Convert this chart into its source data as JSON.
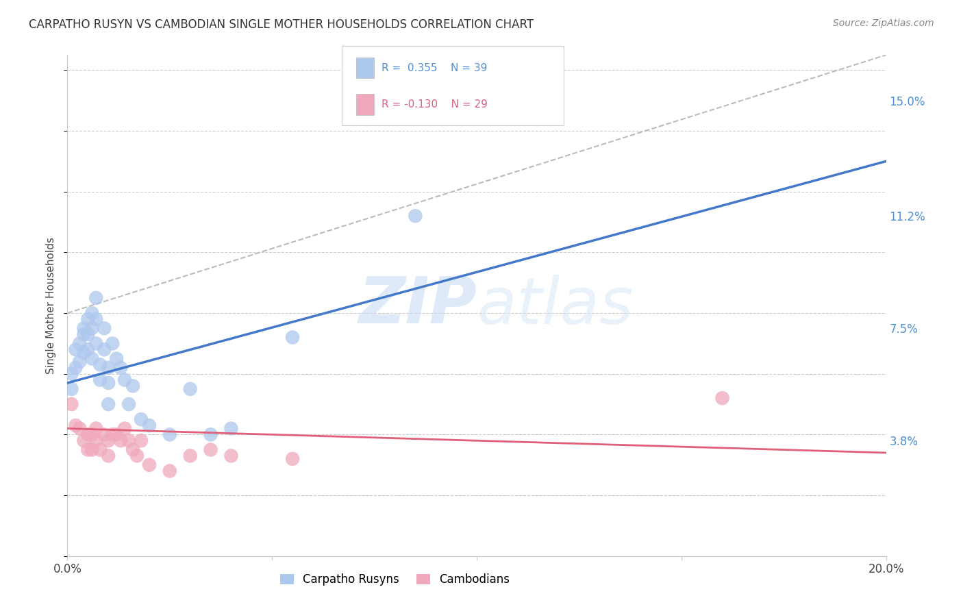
{
  "title": "CARPATHO RUSYN VS CAMBODIAN SINGLE MOTHER HOUSEHOLDS CORRELATION CHART",
  "source": "Source: ZipAtlas.com",
  "ylabel": "Single Mother Households",
  "yticks": [
    "3.8%",
    "7.5%",
    "11.2%",
    "15.0%"
  ],
  "ytick_vals": [
    0.038,
    0.075,
    0.112,
    0.15
  ],
  "xlim": [
    0.0,
    0.2
  ],
  "ylim": [
    0.0,
    0.165
  ],
  "legend_blue_label": "Carpatho Rusyns",
  "legend_pink_label": "Cambodians",
  "blue_color": "#adc8ed",
  "pink_color": "#f0a8bc",
  "blue_line_color": "#4478c8",
  "pink_line_color": "#e0607a",
  "dashed_line_color": "#bbbbbb",
  "watermark_zip": "ZIP",
  "watermark_atlas": "atlas",
  "blue_points_x": [
    0.001,
    0.001,
    0.002,
    0.002,
    0.003,
    0.003,
    0.004,
    0.004,
    0.004,
    0.005,
    0.005,
    0.005,
    0.006,
    0.006,
    0.006,
    0.007,
    0.007,
    0.007,
    0.008,
    0.008,
    0.009,
    0.009,
    0.01,
    0.01,
    0.01,
    0.011,
    0.012,
    0.013,
    0.014,
    0.015,
    0.016,
    0.018,
    0.02,
    0.025,
    0.03,
    0.035,
    0.04,
    0.055,
    0.085
  ],
  "blue_points_y": [
    0.06,
    0.055,
    0.068,
    0.062,
    0.07,
    0.064,
    0.073,
    0.067,
    0.075,
    0.078,
    0.073,
    0.068,
    0.08,
    0.075,
    0.065,
    0.085,
    0.078,
    0.07,
    0.063,
    0.058,
    0.075,
    0.068,
    0.062,
    0.057,
    0.05,
    0.07,
    0.065,
    0.062,
    0.058,
    0.05,
    0.056,
    0.045,
    0.043,
    0.04,
    0.055,
    0.04,
    0.042,
    0.072,
    0.112
  ],
  "pink_points_x": [
    0.001,
    0.002,
    0.003,
    0.004,
    0.005,
    0.005,
    0.006,
    0.006,
    0.007,
    0.007,
    0.008,
    0.009,
    0.01,
    0.01,
    0.011,
    0.012,
    0.013,
    0.014,
    0.015,
    0.016,
    0.017,
    0.018,
    0.02,
    0.025,
    0.03,
    0.035,
    0.04,
    0.055,
    0.16
  ],
  "pink_points_y": [
    0.05,
    0.043,
    0.042,
    0.038,
    0.04,
    0.035,
    0.04,
    0.035,
    0.042,
    0.038,
    0.035,
    0.04,
    0.038,
    0.033,
    0.04,
    0.04,
    0.038,
    0.042,
    0.038,
    0.035,
    0.033,
    0.038,
    0.03,
    0.028,
    0.033,
    0.035,
    0.033,
    0.032,
    0.052
  ],
  "blue_line_x": [
    0.0,
    0.2
  ],
  "blue_line_y": [
    0.057,
    0.13
  ],
  "pink_line_x": [
    0.0,
    0.2
  ],
  "pink_line_y": [
    0.042,
    0.034
  ],
  "dashed_line_x": [
    0.0,
    0.2
  ],
  "dashed_line_y": [
    0.08,
    0.165
  ]
}
